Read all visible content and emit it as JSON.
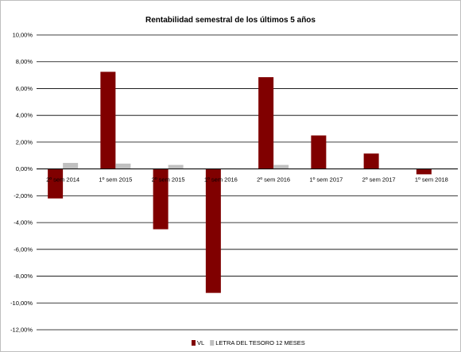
{
  "chart_data": {
    "type": "bar",
    "title": "Rentabilidad semestral de los últimos 5 años",
    "xlabel": "",
    "ylabel": "",
    "categories": [
      "2º sem 2014",
      "1º sem 2015",
      "2º sem 2015",
      "1º sem 2016",
      "2º sem 2016",
      "1º sem 2017",
      "2º sem 2017",
      "1º sem 2018"
    ],
    "series": [
      {
        "name": "VL",
        "color": "#800000",
        "values": [
          -2.2,
          7.25,
          -4.5,
          -9.25,
          6.85,
          2.5,
          1.15,
          -0.4
        ]
      },
      {
        "name": "LETRA DEL TESORO 12 MESES",
        "color": "#c0c0c0",
        "values": [
          0.45,
          0.4,
          0.3,
          0.05,
          0.3,
          0.02,
          0.0,
          0.0
        ]
      }
    ],
    "ylim": [
      -12,
      10
    ],
    "ytick_step": 2,
    "y_tick_labels": [
      "10,00%",
      "8,00%",
      "6,00%",
      "4,00%",
      "2,00%",
      "0,00%",
      "-2,00%",
      "-4,00%",
      "-6,00%",
      "-8,00%",
      "-10,00%",
      "-12,00%"
    ],
    "grid": true,
    "legend_position": "bottom"
  }
}
